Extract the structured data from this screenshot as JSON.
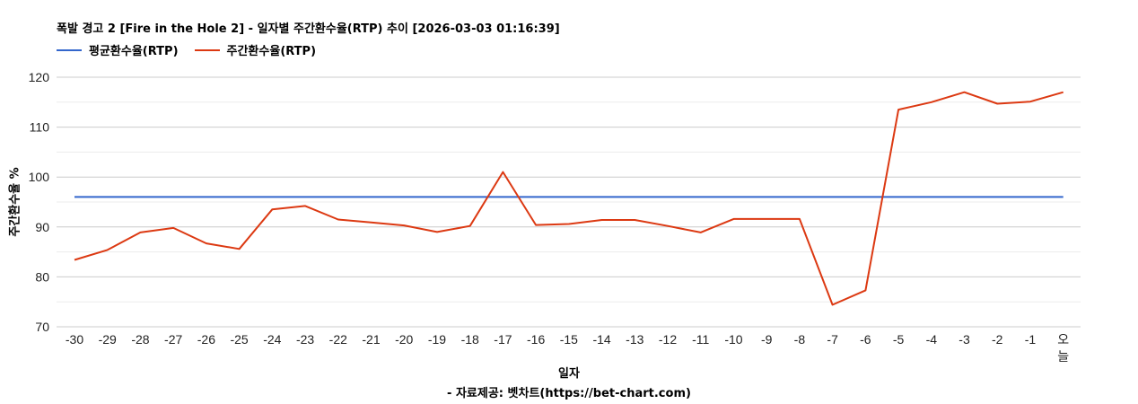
{
  "header": {
    "title": "폭발 경고 2 [Fire in the Hole 2] - 일자별 주간환수율(RTP) 추이 [2026-03-03 01:16:39]"
  },
  "legend": [
    {
      "label": "평균환수율(RTP)",
      "color": "#3366cc"
    },
    {
      "label": "주간환수율(RTP)",
      "color": "#dc3912"
    }
  ],
  "axes": {
    "ylabel": "주간환수율 %",
    "xlabel": "일자"
  },
  "footer": {
    "credit": "- 자료제공: 벳차트(https://bet-chart.com)"
  },
  "chart_data": {
    "type": "line",
    "title": "폭발 경고 2 [Fire in the Hole 2] - 일자별 주간환수율(RTP) 추이 [2026-03-03 01:16:39]",
    "xlabel": "일자",
    "ylabel": "주간환수율 %",
    "ylim": [
      70,
      120
    ],
    "yticks": [
      70,
      80,
      90,
      100,
      110,
      120
    ],
    "grid": true,
    "legend_position": "top",
    "categories": [
      "-30",
      "-29",
      "-28",
      "-27",
      "-26",
      "-25",
      "-24",
      "-23",
      "-22",
      "-21",
      "-20",
      "-19",
      "-18",
      "-17",
      "-16",
      "-15",
      "-14",
      "-13",
      "-12",
      "-11",
      "-10",
      "-9",
      "-8",
      "-7",
      "-6",
      "-5",
      "-4",
      "-3",
      "-2",
      "-1",
      "오늘"
    ],
    "series": [
      {
        "name": "평균환수율(RTP)",
        "color": "#3366cc",
        "values": [
          96,
          96,
          96,
          96,
          96,
          96,
          96,
          96,
          96,
          96,
          96,
          96,
          96,
          96,
          96,
          96,
          96,
          96,
          96,
          96,
          96,
          96,
          96,
          96,
          96,
          96,
          96,
          96,
          96,
          96,
          96
        ]
      },
      {
        "name": "주간환수율(RTP)",
        "color": "#dc3912",
        "values": [
          83.4,
          85.4,
          88.9,
          89.8,
          86.7,
          85.6,
          93.5,
          94.2,
          91.5,
          90.9,
          90.3,
          89.0,
          90.2,
          101.0,
          90.4,
          90.6,
          91.4,
          91.4,
          90.2,
          88.9,
          91.6,
          91.6,
          91.6,
          74.4,
          77.3,
          113.5,
          115.0,
          117.0,
          114.7,
          115.1,
          117.0
        ]
      }
    ]
  }
}
